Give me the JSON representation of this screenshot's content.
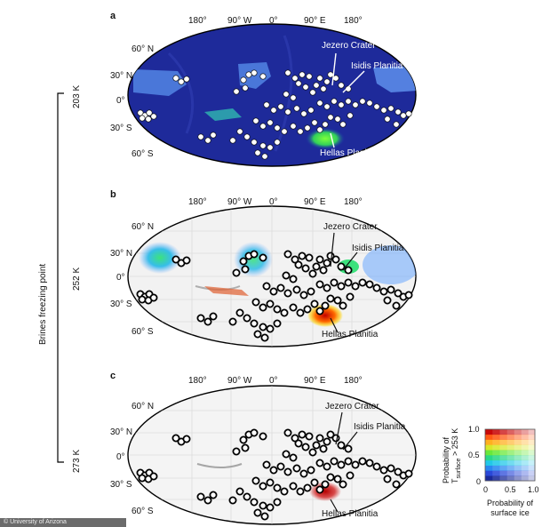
{
  "panels": [
    {
      "letter": "a",
      "label_top": 12,
      "ellipse": {
        "cx": 306,
        "cy": 107,
        "rx": 162,
        "ry": 80
      },
      "style": "dark"
    },
    {
      "letter": "b",
      "label_top": 213,
      "ellipse": {
        "cx": 306,
        "cy": 311,
        "rx": 162,
        "ry": 79
      },
      "style": "light"
    },
    {
      "letter": "c",
      "label_top": 417,
      "ellipse": {
        "cx": 306,
        "cy": 512,
        "rx": 162,
        "ry": 78
      },
      "style": "light"
    }
  ],
  "longitudes": [
    "180°",
    "90° W",
    "0°",
    "90° E",
    "180°"
  ],
  "latitudes": [
    "60° N",
    "30° N",
    "0°",
    "30° S",
    "60° S"
  ],
  "places": {
    "jezero": "Jezero Crater",
    "isidis": "Isidis Planitia",
    "hellas": "Hellas Planitia"
  },
  "side_axis": {
    "title": "Brines freezing point",
    "levels": [
      "203 K",
      "252 K",
      "273 K"
    ]
  },
  "legend": {
    "y_title_pre": "Probability of",
    "y_title_T": "T",
    "y_title_sub": "surface",
    "y_title_post": " > 253 K",
    "x_title_line1": "Probability of",
    "x_title_line2": "surface ice",
    "y_ticks": [
      "1.0",
      "0.5",
      "0"
    ],
    "x_ticks": [
      "0",
      "0.5",
      "1.0"
    ]
  },
  "credit": "© University of Arizona"
}
